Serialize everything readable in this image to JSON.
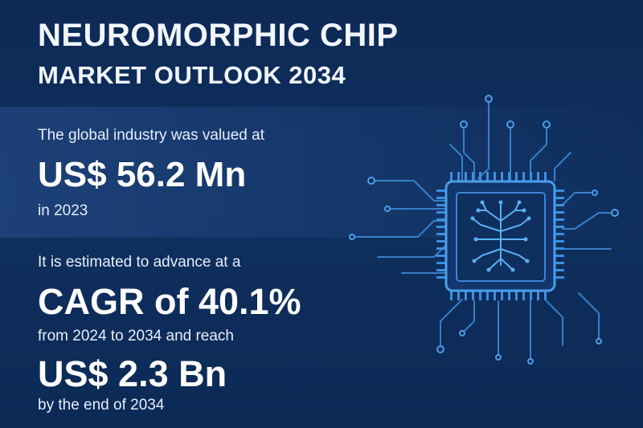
{
  "title": {
    "line1": "NEUROMORPHIC CHIP",
    "line2": "MARKET OUTLOOK 2034"
  },
  "stats": {
    "valued_intro": "The global industry was valued at",
    "value_2023": "US$ 56.2 Mn",
    "value_year": "in 2023",
    "cagr_intro": "It is estimated to advance at a",
    "cagr": "CAGR of 40.1%",
    "period": "from 2024 to 2034 and reach",
    "value_2034": "US$ 2.3 Bn",
    "end_note": "by the end of 2034"
  },
  "illustration": {
    "icon": "neuromorphic-chip-icon",
    "accent_color": "#4a9fe8"
  }
}
